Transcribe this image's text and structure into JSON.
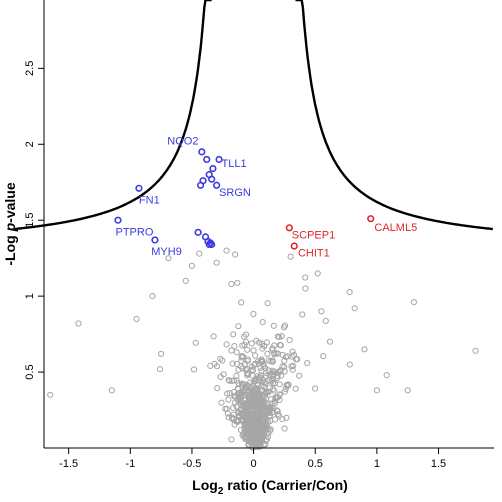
{
  "chart_data": {
    "type": "scatter",
    "xlabel_prefix": "Log",
    "xlabel_sub": "2",
    "xlabel_suffix": " ratio (Carrier/Con)",
    "ylabel_prefix": "-Log ",
    "ylabel_italic": "p",
    "ylabel_suffix": "-value",
    "xlim": [
      -1.7,
      1.95
    ],
    "ylim": [
      0,
      2.95
    ],
    "x_ticks": [
      -1.5,
      -1,
      -0.5,
      0,
      0.5,
      1,
      1.5
    ],
    "x_tick_labels": [
      "-1.5",
      "-1",
      "-0.5",
      "0",
      "0.5",
      "1",
      "1.5"
    ],
    "y_ticks": [
      0.5,
      1,
      1.5,
      2,
      2.5
    ],
    "y_tick_labels": [
      "0.5",
      "1",
      "1.5",
      "2",
      "2.5"
    ],
    "threshold_curve": "x0 = 0.25, c = 0.24; y = c / (|x| - x0) + 1.3",
    "colors": {
      "down": "#3a3adf",
      "up": "#e0262a",
      "ns": "#a6a6a6",
      "curve": "#000000"
    },
    "down_points": [
      {
        "x": -0.42,
        "y": 1.95
      },
      {
        "x": -0.38,
        "y": 1.9
      },
      {
        "x": -0.33,
        "y": 1.84
      },
      {
        "x": -0.28,
        "y": 1.9
      },
      {
        "x": -0.36,
        "y": 1.8
      },
      {
        "x": -0.34,
        "y": 1.77
      },
      {
        "x": -0.41,
        "y": 1.76
      },
      {
        "x": -0.43,
        "y": 1.73
      },
      {
        "x": -0.3,
        "y": 1.73
      },
      {
        "x": -0.93,
        "y": 1.71
      },
      {
        "x": -1.1,
        "y": 1.5
      },
      {
        "x": -0.45,
        "y": 1.42
      },
      {
        "x": -0.39,
        "y": 1.39
      },
      {
        "x": -0.37,
        "y": 1.36
      },
      {
        "x": -0.35,
        "y": 1.35
      },
      {
        "x": -0.34,
        "y": 1.34
      },
      {
        "x": -0.36,
        "y": 1.34
      },
      {
        "x": -0.8,
        "y": 1.37
      }
    ],
    "up_points": [
      {
        "x": 0.95,
        "y": 1.51
      },
      {
        "x": 0.29,
        "y": 1.45
      },
      {
        "x": 0.33,
        "y": 1.33
      }
    ],
    "labels": [
      {
        "text": "NQO2",
        "x": -0.7,
        "y": 2.0,
        "group": "down"
      },
      {
        "text": "TLL1",
        "x": -0.26,
        "y": 1.85,
        "group": "down"
      },
      {
        "text": "SRGN",
        "x": -0.28,
        "y": 1.66,
        "group": "down"
      },
      {
        "text": "FN1",
        "x": -0.93,
        "y": 1.61,
        "group": "down"
      },
      {
        "text": "PTPRO",
        "x": -1.12,
        "y": 1.4,
        "group": "down"
      },
      {
        "text": "MYH9",
        "x": -0.83,
        "y": 1.27,
        "group": "down"
      },
      {
        "text": "SCPEP1",
        "x": 0.31,
        "y": 1.38,
        "group": "up"
      },
      {
        "text": "CHIT1",
        "x": 0.36,
        "y": 1.26,
        "group": "up"
      },
      {
        "text": "CALML5",
        "x": 0.98,
        "y": 1.43,
        "group": "up"
      }
    ],
    "ns_outliers": [
      {
        "x": -1.65,
        "y": 0.35
      },
      {
        "x": -1.42,
        "y": 0.82
      },
      {
        "x": -1.15,
        "y": 0.38
      },
      {
        "x": -0.95,
        "y": 0.85
      },
      {
        "x": -0.82,
        "y": 1.0
      },
      {
        "x": -0.75,
        "y": 0.62
      },
      {
        "x": -0.69,
        "y": 1.25
      },
      {
        "x": -0.55,
        "y": 1.1
      },
      {
        "x": -0.5,
        "y": 1.2
      },
      {
        "x": -0.44,
        "y": 1.28
      },
      {
        "x": -0.3,
        "y": 1.22
      },
      {
        "x": -0.22,
        "y": 1.3
      },
      {
        "x": -0.18,
        "y": 1.08
      },
      {
        "x": 0.3,
        "y": 1.26
      },
      {
        "x": 0.42,
        "y": 1.05
      },
      {
        "x": 0.52,
        "y": 1.15
      },
      {
        "x": 0.55,
        "y": 0.9
      },
      {
        "x": 0.62,
        "y": 0.7
      },
      {
        "x": 0.78,
        "y": 0.55
      },
      {
        "x": 0.82,
        "y": 0.92
      },
      {
        "x": 0.9,
        "y": 0.65
      },
      {
        "x": 1.0,
        "y": 0.38
      },
      {
        "x": 1.08,
        "y": 0.48
      },
      {
        "x": 1.25,
        "y": 0.38
      },
      {
        "x": 1.3,
        "y": 0.96
      },
      {
        "x": 1.8,
        "y": 0.64
      }
    ]
  }
}
